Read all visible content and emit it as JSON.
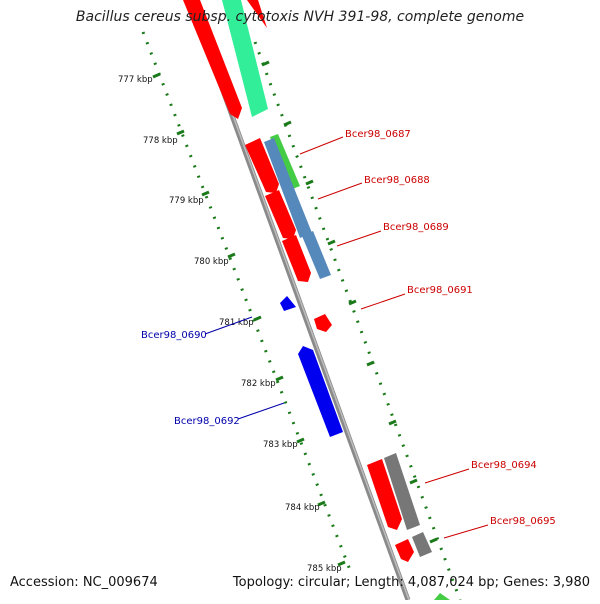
{
  "header": {
    "title": "Bacillus cereus subsp. cytotoxis NVH 391-98, complete genome"
  },
  "footer": {
    "accession": "Accession: NC_009674",
    "topology": "Topology: circular; Length: 4,087,024 bp; Genes: 3,980"
  },
  "colors": {
    "backbone": "#8a8a8a",
    "tick": "#1a7a1a",
    "forward_cds": "#ff0000",
    "reverse_cds": "#0000ee",
    "forward_label": "#cc0000",
    "reverse_label": "#0000aa",
    "teal": "#33ee99",
    "steel_blue": "#5588bb",
    "gray": "#777777",
    "green": "#44cc44"
  },
  "scale_ticks": [
    "777 kbp",
    "778 kbp",
    "779 kbp",
    "780 kbp",
    "781 kbp",
    "782 kbp",
    "783 kbp",
    "784 kbp",
    "785 kbp"
  ],
  "gene_labels": {
    "forward": [
      "Bcer98_0687",
      "Bcer98_0688",
      "Bcer98_0689",
      "Bcer98_0691",
      "Bcer98_0694",
      "Bcer98_0695"
    ],
    "reverse": [
      "Bcer98_0690",
      "Bcer98_0692"
    ]
  }
}
